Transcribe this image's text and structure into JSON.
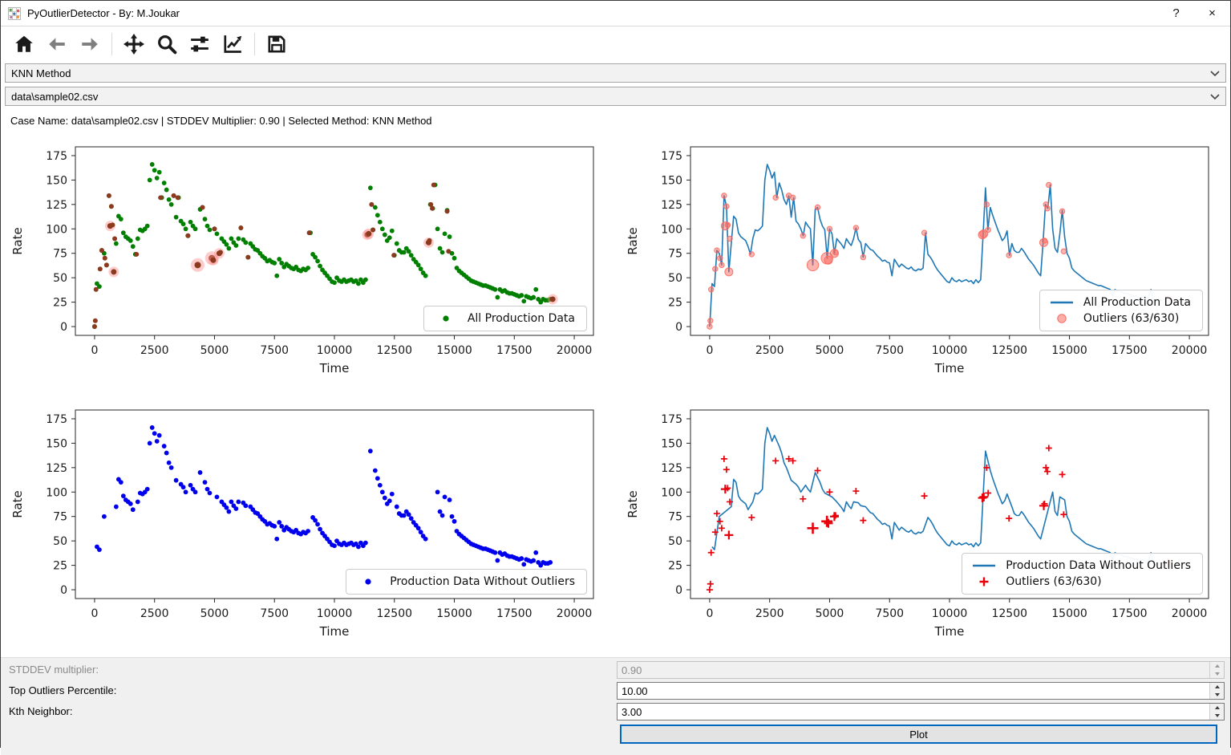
{
  "window": {
    "title": "PyOutlierDetector - By: M.Joukar",
    "help_label": "?",
    "close_label": "×"
  },
  "toolbar": {
    "icons": [
      "home-icon",
      "back-icon",
      "forward-icon",
      "pan-icon",
      "zoom-icon",
      "subplots-icon",
      "axes-icon",
      "save-icon"
    ]
  },
  "method_select": {
    "value": "KNN Method"
  },
  "file_select": {
    "value": "data\\sample02.csv"
  },
  "status_bar": {
    "text": "Case Name: data\\sample02.csv | STDDEV Multiplier: 0.90 | Selected Method: KNN Method"
  },
  "controls": {
    "rows": [
      {
        "label": "STDDEV multiplier:",
        "value": "0.90",
        "disabled": true
      },
      {
        "label": "Top Outliers Percentile:",
        "value": "10.00",
        "disabled": false
      },
      {
        "label": "Kth Neighbor:",
        "value": "3.00",
        "disabled": false
      }
    ],
    "plot_button": "Plot"
  },
  "chart_data": {
    "type": "line",
    "xlabel": "Time",
    "ylabel": "Rate",
    "x_ticks": [
      0,
      2500,
      5000,
      7500,
      10000,
      12500,
      15000,
      17500,
      20000
    ],
    "y_ticks": [
      0,
      25,
      50,
      75,
      100,
      125,
      150,
      175
    ],
    "xlim": [
      -800,
      20800
    ],
    "ylim": [
      -9,
      184
    ],
    "x_step": 100,
    "series_y": [
      0,
      44,
      41,
      78,
      75,
      63,
      134,
      123,
      56,
      85,
      113,
      110,
      96,
      92,
      90,
      88,
      82,
      74,
      90,
      99,
      98,
      100,
      103,
      150,
      166,
      160,
      152,
      158,
      132,
      147,
      140,
      130,
      125,
      134,
      112,
      132,
      108,
      105,
      100,
      93,
      107,
      103,
      100,
      63,
      120,
      122,
      110,
      103,
      99,
      70,
      100,
      95,
      75,
      90,
      87,
      84,
      80,
      90,
      86,
      83,
      90,
      101,
      89,
      86,
      71,
      85,
      82,
      79,
      78,
      75,
      72,
      70,
      67,
      68,
      66,
      65,
      52,
      69,
      65,
      61,
      64,
      62,
      60,
      59,
      61,
      58,
      57,
      59,
      58,
      60,
      96,
      74,
      71,
      67,
      62,
      58,
      55,
      52,
      49,
      46,
      45,
      50,
      47,
      46,
      48,
      46,
      47,
      48,
      46,
      47,
      44,
      48,
      45,
      48,
      94,
      142,
      99,
      122,
      114,
      107,
      100,
      94,
      88,
      91,
      98,
      73,
      85,
      78,
      76,
      76,
      80,
      77,
      73,
      69,
      66,
      63,
      59,
      55,
      52,
      86,
      125,
      121,
      145,
      100,
      80,
      76,
      95,
      119,
      92,
      75,
      70,
      60,
      57,
      55,
      53,
      51,
      49,
      47,
      46,
      45,
      44,
      43,
      42,
      42,
      41,
      40,
      39,
      38,
      30,
      38,
      36,
      37,
      35,
      34,
      34,
      33,
      32,
      31,
      32,
      26,
      31,
      30,
      29,
      30,
      38,
      28,
      25,
      28,
      27,
      27,
      28,
      28
    ],
    "outliers": [
      [
        0,
        0,
        1
      ],
      [
        30,
        6,
        1
      ],
      [
        60,
        38,
        1
      ],
      [
        230,
        59,
        1
      ],
      [
        300,
        78,
        1
      ],
      [
        430,
        70,
        1
      ],
      [
        500,
        63,
        1
      ],
      [
        600,
        134,
        1
      ],
      [
        650,
        103,
        2
      ],
      [
        700,
        123,
        1
      ],
      [
        750,
        104,
        1
      ],
      [
        800,
        56,
        2
      ],
      [
        840,
        90,
        1
      ],
      [
        1750,
        74,
        1
      ],
      [
        2750,
        132,
        1
      ],
      [
        3300,
        134,
        1
      ],
      [
        3470,
        132,
        1
      ],
      [
        3890,
        93,
        1
      ],
      [
        4300,
        63,
        3
      ],
      [
        4500,
        122,
        1
      ],
      [
        4890,
        70,
        3
      ],
      [
        4950,
        68,
        2
      ],
      [
        5000,
        100,
        1
      ],
      [
        5200,
        75,
        2
      ],
      [
        5250,
        76,
        1
      ],
      [
        6100,
        101,
        1
      ],
      [
        6400,
        71,
        1
      ],
      [
        8950,
        96,
        1
      ],
      [
        11370,
        94,
        2
      ],
      [
        11430,
        95,
        2
      ],
      [
        11550,
        125,
        1
      ],
      [
        11610,
        99,
        1
      ],
      [
        12480,
        73,
        1
      ],
      [
        13930,
        86,
        2
      ],
      [
        13960,
        88,
        1
      ],
      [
        14020,
        125,
        1
      ],
      [
        14080,
        121,
        1
      ],
      [
        14140,
        145,
        1
      ],
      [
        14700,
        118,
        1
      ],
      [
        14760,
        77,
        1
      ],
      [
        19100,
        28,
        2
      ]
    ],
    "colors": {
      "all_scatter": "#007f00",
      "outlier_dot": "#8b3a1e",
      "outlier_halo": "#ff8f8f",
      "line": "#1f77b4",
      "clean_scatter": "#0000ee",
      "outlier_circle": "#f9695f",
      "outlier_plus": "#e8000b"
    },
    "charts": [
      {
        "kind": "scatter",
        "data": "all",
        "outlier_marker": "dot",
        "legend": [
          {
            "marker": "dot",
            "color": "#007f00",
            "label": "All Production Data"
          }
        ]
      },
      {
        "kind": "line",
        "data": "all",
        "outlier_marker": "circle",
        "legend": [
          {
            "marker": "line",
            "color": "#1f77b4",
            "label": "All Production Data"
          },
          {
            "marker": "circle",
            "color": "#f9695f",
            "label": "Outliers (63/630)"
          }
        ]
      },
      {
        "kind": "scatter",
        "data": "clean",
        "outlier_marker": "none",
        "legend": [
          {
            "marker": "dot",
            "color": "#0000ee",
            "label": "Production Data Without Outliers"
          }
        ]
      },
      {
        "kind": "line",
        "data": "clean",
        "outlier_marker": "plus",
        "legend": [
          {
            "marker": "line",
            "color": "#1f77b4",
            "label": "Production Data Without Outliers"
          },
          {
            "marker": "plus",
            "color": "#e8000b",
            "label": "Outliers (63/630)"
          }
        ]
      }
    ]
  }
}
